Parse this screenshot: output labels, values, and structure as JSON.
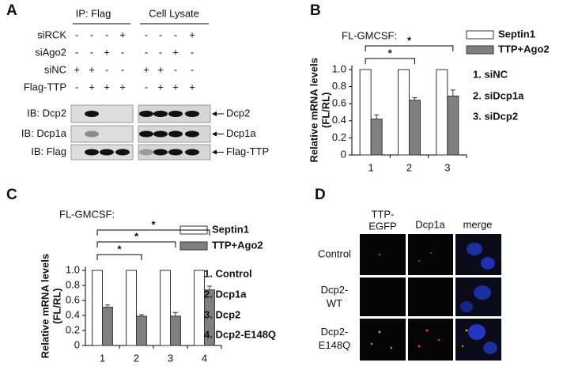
{
  "panel_a": {
    "label": "A",
    "headers": [
      "IP: Flag",
      "Cell Lysate"
    ],
    "conditions": [
      {
        "label": "siRCK",
        "ip": [
          "-",
          "-",
          "-",
          "+"
        ],
        "lysate": [
          "-",
          "-",
          "-",
          "+"
        ]
      },
      {
        "label": "siAgo2",
        "ip": [
          "-",
          "-",
          "+",
          "-"
        ],
        "lysate": [
          "-",
          "-",
          "+",
          "-"
        ]
      },
      {
        "label": "siNC",
        "ip": [
          "+",
          "+",
          "-",
          "-"
        ],
        "lysate": [
          "+",
          "+",
          "-",
          "-"
        ]
      },
      {
        "label": "Flag-TTP",
        "ip": [
          "-",
          "+",
          "+",
          "+"
        ],
        "lysate": [
          "-",
          "+",
          "+",
          "+"
        ]
      }
    ],
    "blots": [
      {
        "label": "IB: Dcp2",
        "target": "Dcp2"
      },
      {
        "label": "IB: Dcp1a",
        "target": "Dcp1a"
      },
      {
        "label": "IB: Flag",
        "target": "Flag-TTP"
      }
    ]
  },
  "chart_data": [
    {
      "type": "bar",
      "panel": "B",
      "title": "FL-GMCSF:",
      "ylabel": [
        "Relative mRNA levels",
        "(FL/RL)"
      ],
      "categories": [
        "1",
        "2",
        "3"
      ],
      "series": [
        {
          "name": "Septin1",
          "color": "#ffffff",
          "values": [
            1,
            1,
            1
          ]
        },
        {
          "name": "TTP+Ago2",
          "color": "#808080",
          "values": [
            0.42,
            0.64,
            0.69
          ],
          "errors": [
            0.05,
            0.03,
            0.07
          ]
        }
      ],
      "ylim": [
        0,
        1.05
      ],
      "yticks": [
        0,
        0.2,
        0.4,
        0.6,
        0.8,
        {
          "value": 1,
          "label": "1.0"
        }
      ],
      "notes": [
        "1. siNC",
        "2. siDcp1a",
        "3. siDcp2"
      ],
      "significance": [
        {
          "pair": [
            "1",
            "2"
          ],
          "label": "*"
        },
        {
          "pair": [
            "1",
            "3"
          ],
          "label": "*"
        }
      ]
    },
    {
      "type": "bar",
      "panel": "C",
      "title": "FL-GMCSF:",
      "ylabel": [
        "Relative mRNA levels",
        "(FL/RL)"
      ],
      "categories": [
        "1",
        "2",
        "3",
        "4"
      ],
      "series": [
        {
          "name": "Septin1",
          "color": "#ffffff",
          "values": [
            1,
            1,
            1,
            1
          ]
        },
        {
          "name": "TTP+Ago2",
          "color": "#808080",
          "values": [
            0.51,
            0.39,
            0.39,
            0.74
          ],
          "errors": [
            0.03,
            0.02,
            0.05,
            0.05
          ]
        }
      ],
      "ylim": [
        0,
        1.05
      ],
      "yticks": [
        0,
        0.2,
        0.4,
        0.6,
        0.8,
        {
          "value": 1,
          "label": "1.0"
        }
      ],
      "notes": [
        "1. Control",
        "2. Dcp1a",
        "3. Dcp2",
        "4. Dcp2-E148Q"
      ],
      "significance": [
        {
          "pair": [
            "1",
            "2"
          ],
          "label": "*"
        },
        {
          "pair": [
            "1",
            "3"
          ],
          "label": "*"
        },
        {
          "pair": [
            "1",
            "4"
          ],
          "label": "*"
        }
      ]
    }
  ],
  "panel_d": {
    "label": "D",
    "columns": [
      [
        "TTP-",
        "EGFP"
      ],
      [
        "Dcp1a"
      ],
      [
        "merge"
      ]
    ],
    "rows": [
      [
        "Control"
      ],
      [
        "Dcp2-",
        "WT"
      ],
      [
        "Dcp2-",
        "E148Q"
      ]
    ]
  }
}
